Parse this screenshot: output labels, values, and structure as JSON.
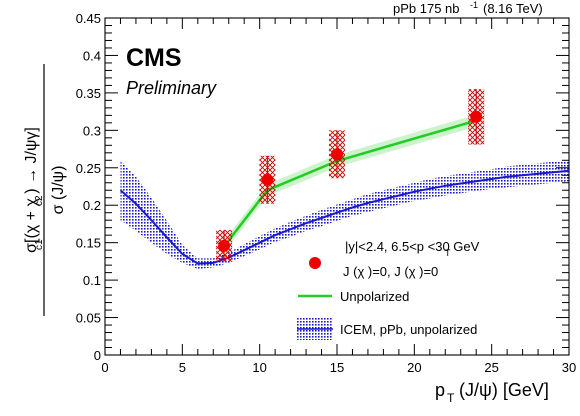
{
  "chart_data": {
    "type": "scatter",
    "experiment_label": "CMS",
    "status_label": "Preliminary",
    "lumi_label": "pPb 175 nb",
    "lumi_exponent": "-1",
    "energy_label": "(8.16 TeV)",
    "xlabel": "p",
    "xlabel_sub": "T",
    "xlabel_rest": "(J/ψ) [GeV]",
    "ylabel_num": "σ[(χ + χ ) → J/ψγ]",
    "ylabel_den": "σ (J/ψ)",
    "xlim": [
      0,
      30
    ],
    "ylim": [
      0,
      0.45
    ],
    "x_ticks": [
      0,
      5,
      10,
      15,
      20,
      25,
      30
    ],
    "y_ticks": [
      0,
      0.05,
      0.1,
      0.15,
      0.2,
      0.25,
      0.3,
      0.35,
      0.4,
      0.45
    ],
    "x_tick_labels": [
      "0",
      "5",
      "10",
      "15",
      "20",
      "25",
      "30"
    ],
    "y_tick_labels": [
      "0",
      "0.05",
      "0.1",
      "0.15",
      "0.2",
      "0.25",
      "0.3",
      "0.35",
      "0.4",
      "0.45"
    ],
    "legend": {
      "position": "bottom-right",
      "data_header": "|y|<2.4, 6.5<p  <30 GeV",
      "data_sub": "J (χ )=0, J (χ )=0",
      "line_label": "Unpolarized",
      "band_label": "ICEM, pPb, unpolarized"
    },
    "data_series": {
      "points": [
        {
          "x": 7.7,
          "y": 0.146,
          "syst": 0.021
        },
        {
          "x": 10.5,
          "y": 0.234,
          "syst": 0.032
        },
        {
          "x": 15.0,
          "y": 0.268,
          "syst": 0.032
        },
        {
          "x": 24.0,
          "y": 0.318,
          "syst": 0.037
        }
      ],
      "color": "#ee0000",
      "syst_color": "#cc0000"
    },
    "unpolarized_line": {
      "x": [
        7.7,
        10.5,
        15.0,
        24.0
      ],
      "y": [
        0.145,
        0.22,
        0.259,
        0.313
      ],
      "band_width": 0.008,
      "color": "#22cc22",
      "band_color": "#bff0bf"
    },
    "icem_band": {
      "x": [
        1,
        2,
        3,
        4,
        5,
        6,
        7,
        8,
        9,
        10,
        11,
        12,
        13,
        14,
        15,
        16,
        17,
        18,
        19,
        20,
        21,
        22,
        23,
        24,
        25,
        26,
        27,
        28,
        29,
        30
      ],
      "y": [
        0.22,
        0.202,
        0.18,
        0.157,
        0.135,
        0.122,
        0.123,
        0.13,
        0.14,
        0.15,
        0.16,
        0.168,
        0.176,
        0.183,
        0.19,
        0.197,
        0.203,
        0.208,
        0.213,
        0.218,
        0.222,
        0.226,
        0.229,
        0.232,
        0.235,
        0.238,
        0.24,
        0.242,
        0.244,
        0.246
      ],
      "half_width": [
        0.04,
        0.036,
        0.03,
        0.022,
        0.012,
        0.007,
        0.006,
        0.007,
        0.008,
        0.009,
        0.009,
        0.01,
        0.01,
        0.011,
        0.011,
        0.011,
        0.012,
        0.012,
        0.012,
        0.012,
        0.013,
        0.013,
        0.013,
        0.013,
        0.013,
        0.014,
        0.014,
        0.014,
        0.014,
        0.014
      ],
      "color": "#1a1acc",
      "line_color": "#1a1acc"
    }
  }
}
